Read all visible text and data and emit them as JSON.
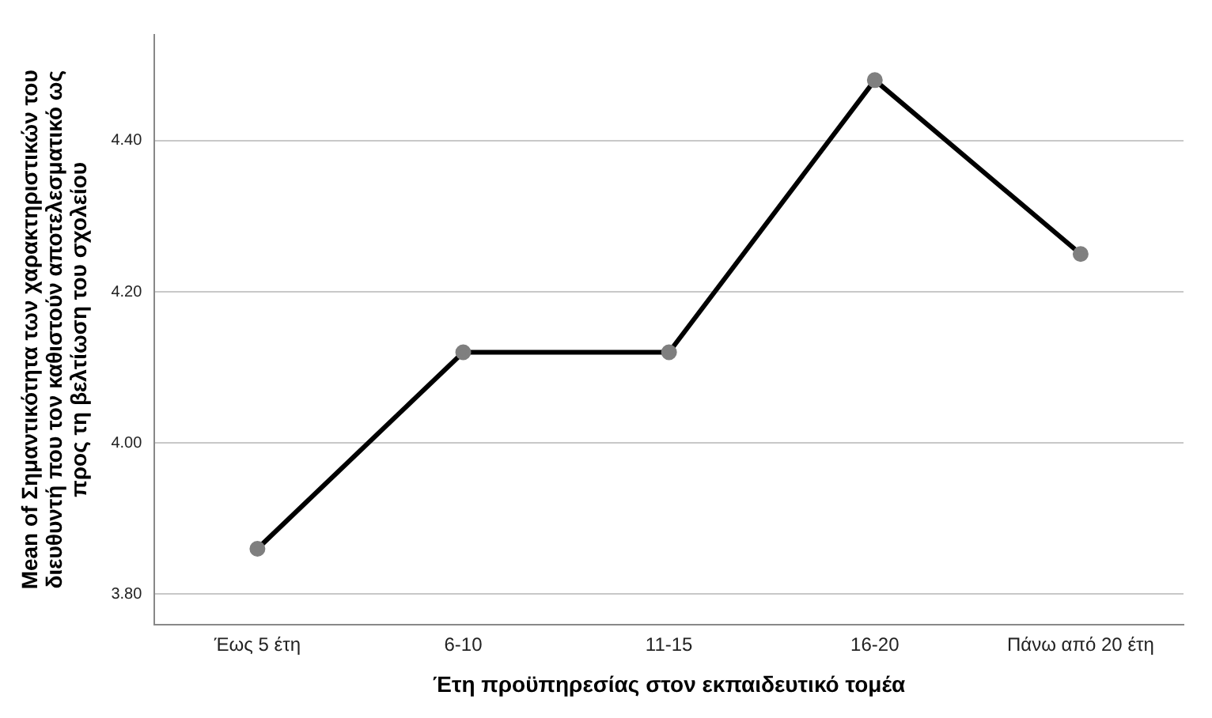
{
  "chart_data": {
    "type": "line",
    "xlabel": "Έτη προϋπηρεσίας στον εκπαιδευτικό τομέα",
    "ylabel": "Mean of Σημαντικότητα των χαρακτηριστικών του διευθυντή που τον καθιστούν αποτελεσματικό ως προς τη βελτίωση του σχολείου",
    "categories": [
      "Έως 5 έτη",
      "6-10",
      "11-15",
      "16-20",
      "Πάνω από 20 έτη"
    ],
    "series": [
      {
        "color": "#000000",
        "values": [
          3.86,
          4.12,
          4.12,
          4.48,
          4.25
        ]
      }
    ],
    "ylim": [
      3.76,
      4.54
    ],
    "yticks": [
      {
        "value": 3.8,
        "label": "3.80"
      },
      {
        "value": 4.0,
        "label": "4.00"
      },
      {
        "value": 4.2,
        "label": "4.20"
      },
      {
        "value": 4.4,
        "label": "4.40"
      }
    ],
    "grid": "y",
    "marker": "circle",
    "line_style": "solid"
  }
}
